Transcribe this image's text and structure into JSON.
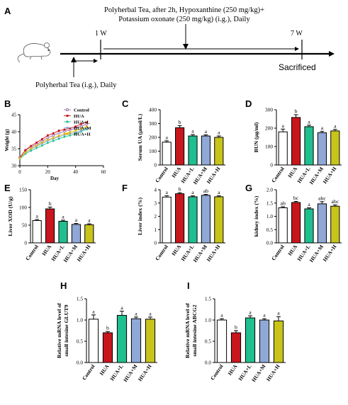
{
  "colors": {
    "Control": "#ffffff",
    "HUA": "#c8161d",
    "HUA+L": "#1fbf8f",
    "HUA+M": "#8fa8d6",
    "HUA+H": "#c8c41a"
  },
  "panelA": {
    "label": "A",
    "top_text_line1": "Polyherbal Tea, after 2h, Hypoxanthine (250 mg/kg)+",
    "top_text_line2": "Potassium oxonate (250 mg/kg) (i.g.), Daily",
    "week1": "1 W",
    "week7": "7 W",
    "end_label": "Sacrificed",
    "bottom_text": "Polyherbal Tea (i.g.), Daily",
    "mouse_icon": "mouse-icon"
  },
  "chart_data": [
    {
      "id": "B",
      "label": "B",
      "type": "line",
      "xlabel": "Day",
      "ylabel": "Weight (g)",
      "xlim": [
        0,
        60
      ],
      "ylim": [
        30,
        45
      ],
      "xticks": [
        "0",
        "20",
        "40",
        "60"
      ],
      "yticks": [
        "30",
        "35",
        "40",
        "45"
      ],
      "legend": [
        "Control",
        "HUA",
        "HUA+L",
        "HUA+M",
        "HUA+H"
      ],
      "x": [
        0,
        4,
        8,
        12,
        16,
        20,
        24,
        28,
        32,
        36,
        40,
        44,
        48
      ],
      "series": [
        {
          "name": "Control",
          "values": [
            32.5,
            34.5,
            35.5,
            36.3,
            37.2,
            38.2,
            38.9,
            39.6,
            40.1,
            40.5,
            41.0,
            41.6,
            42.2
          ]
        },
        {
          "name": "HUA",
          "values": [
            32.3,
            34.6,
            35.8,
            36.8,
            37.8,
            38.9,
            39.5,
            40.3,
            40.6,
            41.0,
            41.5,
            42.3,
            42.7
          ]
        },
        {
          "name": "HUA+L",
          "values": [
            32.0,
            33.5,
            34.4,
            35.2,
            35.9,
            36.7,
            37.3,
            37.9,
            38.5,
            38.9,
            39.4,
            40.1,
            40.7
          ]
        },
        {
          "name": "HUA+M",
          "values": [
            32.2,
            33.8,
            34.9,
            35.7,
            36.5,
            37.3,
            37.9,
            38.5,
            39.0,
            39.4,
            39.8,
            40.4,
            41.0
          ]
        },
        {
          "name": "HUA+H",
          "values": [
            32.1,
            33.9,
            35.0,
            35.9,
            36.8,
            37.6,
            38.2,
            38.8,
            39.4,
            39.8,
            40.3,
            40.9,
            41.5
          ]
        }
      ]
    },
    {
      "id": "C",
      "label": "C",
      "type": "bar",
      "ylabel": "Serum UA (μmol/L)",
      "categories": [
        "Control",
        "HUA",
        "HUA+L",
        "HUA+M",
        "HUA+H"
      ],
      "values": [
        165,
        270,
        210,
        210,
        200
      ],
      "errors": [
        10,
        15,
        10,
        8,
        10
      ],
      "letters": [
        "a",
        "b",
        "a",
        "a",
        "a"
      ],
      "ylim": [
        0,
        400
      ],
      "yticks": [
        "0",
        "100",
        "200",
        "300",
        "400"
      ]
    },
    {
      "id": "D",
      "label": "D",
      "type": "bar",
      "ylabel": "BUN (μg/ml)",
      "categories": [
        "Control",
        "HUA",
        "HUA+L",
        "HUA+M",
        "HUA+H"
      ],
      "values": [
        180,
        258,
        208,
        175,
        185
      ],
      "errors": [
        15,
        15,
        8,
        8,
        8
      ],
      "letters": [
        "a",
        "b",
        "a",
        "a",
        "a"
      ],
      "ylim": [
        0,
        300
      ],
      "yticks": [
        "0",
        "100",
        "200",
        "300"
      ]
    },
    {
      "id": "E",
      "label": "E",
      "type": "bar",
      "ylabel": "Liver XOD (U/g)",
      "categories": [
        "Control",
        "HUA",
        "HUA+L",
        "HUA+M",
        "HUA+H"
      ],
      "values": [
        63,
        96,
        61,
        52,
        51
      ],
      "errors": [
        3,
        5,
        3,
        3,
        3
      ],
      "letters": [
        "a",
        "b",
        "a",
        "a",
        "a"
      ],
      "ylim": [
        0,
        150
      ],
      "yticks": [
        "0",
        "50",
        "100",
        "150"
      ]
    },
    {
      "id": "F",
      "label": "F",
      "type": "bar",
      "ylabel": "Liver index (%)",
      "categories": [
        "Control",
        "HUA",
        "HUA+L",
        "HUA+M",
        "HUA+H"
      ],
      "values": [
        3.45,
        3.7,
        3.47,
        3.58,
        3.47
      ],
      "errors": [
        0.1,
        0.08,
        0.07,
        0.07,
        0.07
      ],
      "letters": [
        "a",
        "b",
        "a",
        "ab",
        "a"
      ],
      "ylim": [
        0,
        4
      ],
      "yticks": [
        "0",
        "1",
        "2",
        "3",
        "4"
      ]
    },
    {
      "id": "G",
      "label": "G",
      "type": "bar",
      "ylabel": "kidney index (%)",
      "categories": [
        "Control",
        "HUA",
        "HUA+L",
        "HUA+M",
        "HUA+H"
      ],
      "values": [
        1.32,
        1.52,
        1.28,
        1.47,
        1.38
      ],
      "errors": [
        0.04,
        0.04,
        0.04,
        0.08,
        0.05
      ],
      "letters": [
        "ab",
        "bc",
        "a",
        "abc",
        "abc"
      ],
      "ylim": [
        0,
        2.0
      ],
      "yticks": [
        "0.0",
        "0.5",
        "1.0",
        "1.5",
        "2.0"
      ]
    },
    {
      "id": "H",
      "label": "H",
      "type": "bar",
      "ylabel": "Relative mRNA level of small intesine GLUT9",
      "ylabel_lines": [
        "Relative mRNA level of",
        "small intesine GLUT9"
      ],
      "categories": [
        "Control",
        "HUA",
        "HUA+L",
        "HUA+M",
        "HUA+H"
      ],
      "values": [
        1.02,
        0.7,
        1.11,
        1.03,
        1.02
      ],
      "errors": [
        0.1,
        0.03,
        0.1,
        0.04,
        0.05
      ],
      "letters": [
        "a",
        "b",
        "a",
        "a",
        "a"
      ],
      "ylim": [
        0,
        1.5
      ],
      "yticks": [
        "0.0",
        "0.5",
        "1.0",
        "1.5"
      ]
    },
    {
      "id": "I",
      "label": "I",
      "type": "bar",
      "ylabel": "Relative mRNA level of small intesine ABCG2",
      "ylabel_lines": [
        "Relative mRNA level of",
        "small intesine ABCG2"
      ],
      "categories": [
        "Control",
        "HUA",
        "HUA+L",
        "HUA+M",
        "HUA+H"
      ],
      "values": [
        1.0,
        0.7,
        1.05,
        1.0,
        0.98
      ],
      "errors": [
        0.03,
        0.05,
        0.05,
        0.03,
        0.1
      ],
      "letters": [
        "a",
        "b",
        "a",
        "a",
        "a"
      ],
      "ylim": [
        0,
        1.5
      ],
      "yticks": [
        "0.0",
        "0.5",
        "1.0",
        "1.5"
      ]
    }
  ]
}
